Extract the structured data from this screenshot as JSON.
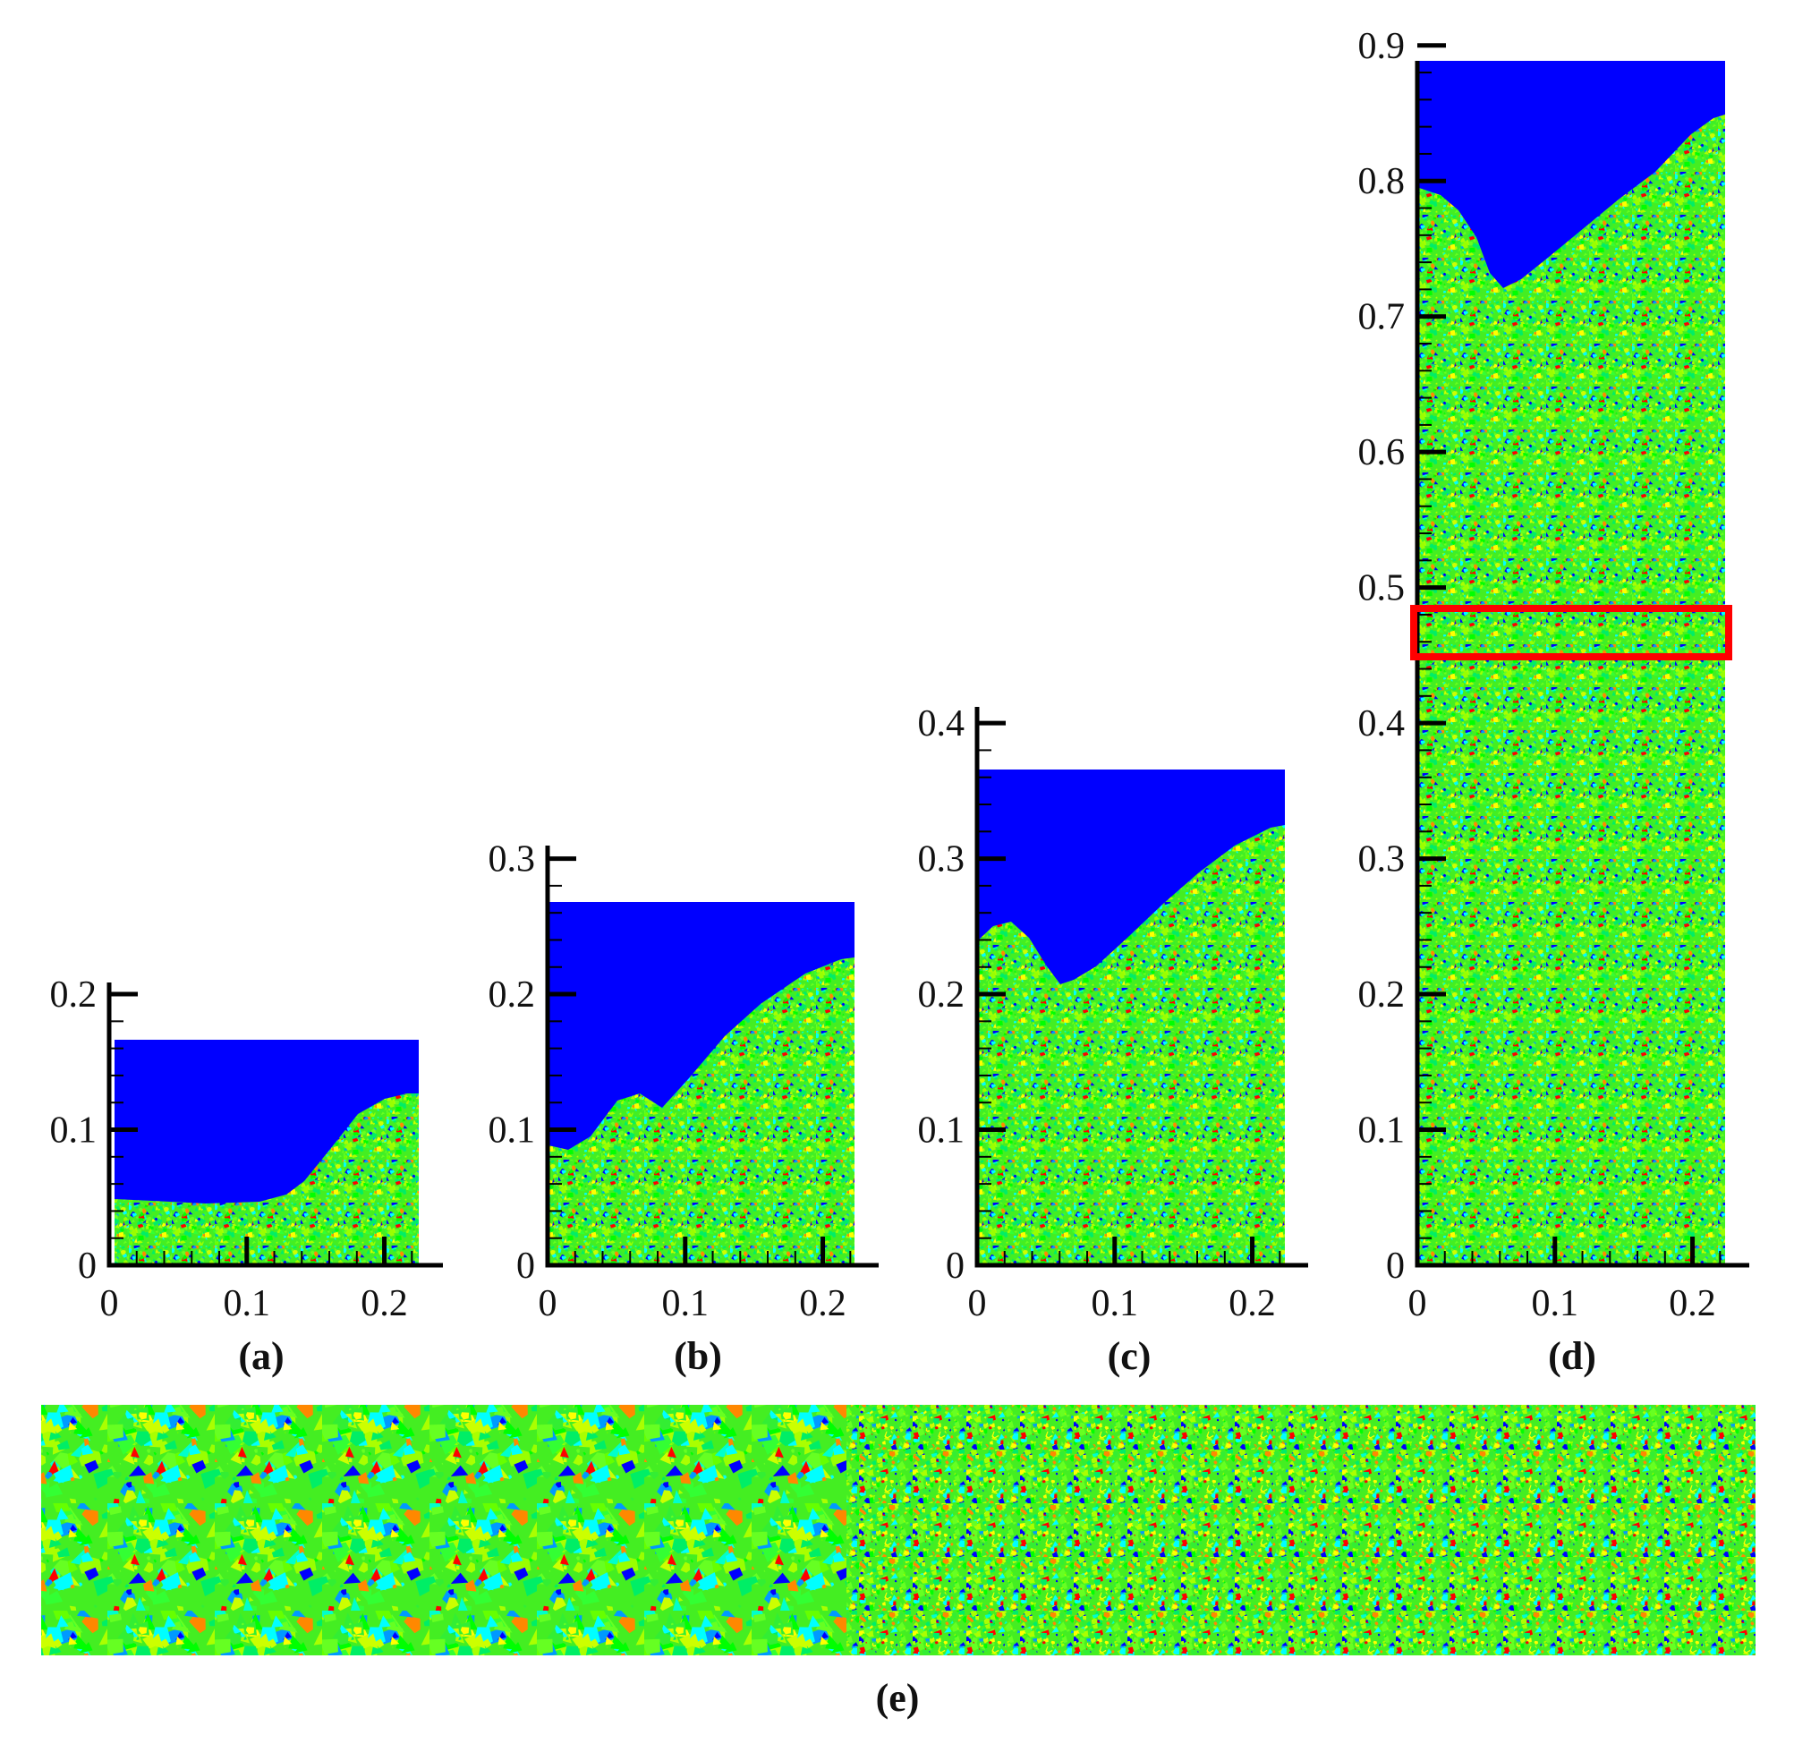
{
  "figure": {
    "colors": {
      "air": "#0000ff",
      "particle_palette": [
        "#00ff00",
        "#33ff33",
        "#66ff00",
        "#99ff00",
        "#ccff00",
        "#ffff00",
        "#00ffcc",
        "#00ffff",
        "#0099ff",
        "#0000ff",
        "#ff8800",
        "#ff0000"
      ],
      "highlight_box": "#ff0000",
      "axis": "#000000"
    },
    "panels": [
      {
        "label": "(a)",
        "x_ticks": [
          "0",
          "0.1",
          "0.2"
        ],
        "y_ticks": [
          "0",
          "0.1",
          "0.2"
        ],
        "x_range": [
          0,
          0.22
        ],
        "y_range": [
          0,
          0.22
        ],
        "domain_height": 0.17
      },
      {
        "label": "(b)",
        "x_ticks": [
          "0",
          "0.1",
          "0.2"
        ],
        "y_ticks": [
          "0",
          "0.1",
          "0.2",
          "0.3"
        ],
        "x_range": [
          0,
          0.22
        ],
        "y_range": [
          0,
          0.32
        ],
        "domain_height": 0.27
      },
      {
        "label": "(c)",
        "x_ticks": [
          "0",
          "0.1",
          "0.2"
        ],
        "y_ticks": [
          "0",
          "0.1",
          "0.2",
          "0.3",
          "0.4"
        ],
        "x_range": [
          0,
          0.22
        ],
        "y_range": [
          0,
          0.42
        ],
        "domain_height": 0.37
      },
      {
        "label": "(d)",
        "x_ticks": [
          "0",
          "0.1",
          "0.2"
        ],
        "y_ticks": [
          "0",
          "0.1",
          "0.2",
          "0.3",
          "0.4",
          "0.5",
          "0.6",
          "0.7",
          "0.8",
          "0.9"
        ],
        "x_range": [
          0,
          0.22
        ],
        "y_range": [
          0,
          0.9
        ],
        "domain_height": 0.9
      }
    ],
    "zoom_panel": {
      "label": "(e)"
    }
  }
}
